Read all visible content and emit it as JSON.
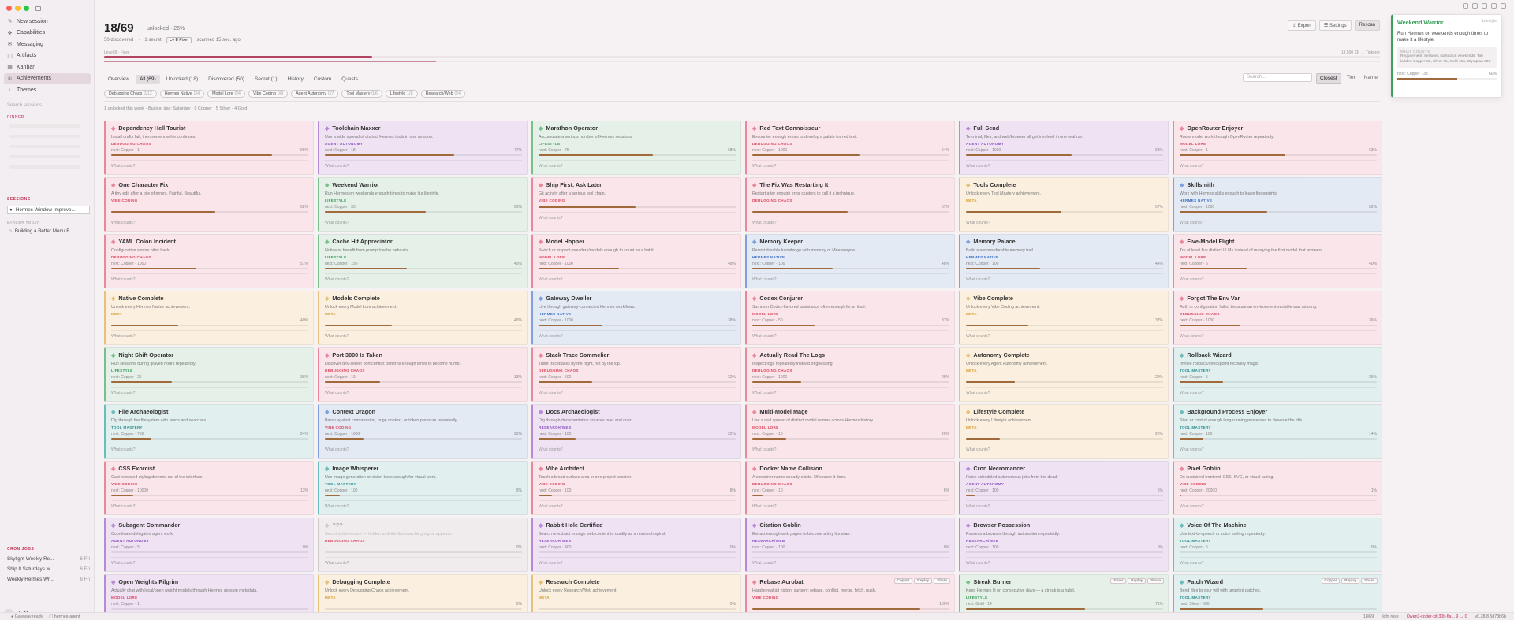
{
  "sidebar": {
    "nav": [
      {
        "icon": "✎",
        "icon_name": "new-session-icon",
        "label": "New session"
      },
      {
        "icon": "❖",
        "icon_name": "capabilities-icon",
        "label": "Capabilities"
      },
      {
        "icon": "✉",
        "icon_name": "messaging-icon",
        "label": "Messaging"
      },
      {
        "icon": "▢",
        "icon_name": "artifacts-icon",
        "label": "Artifacts"
      },
      {
        "icon": "▦",
        "icon_name": "kanban-icon",
        "label": "Kanban"
      },
      {
        "icon": "♔",
        "icon_name": "achievements-icon",
        "label": "Achievements"
      },
      {
        "icon": "◐",
        "icon_name": "themes-icon",
        "label": "Themes"
      }
    ],
    "search_placeholder": "Search sessions",
    "pinned_label": "PINNED",
    "sessions_label": "SESSIONS",
    "sessions": [
      {
        "label": "Hermes Window Improve..."
      }
    ],
    "earlier_label": "EARLIER TODAY",
    "earlier": [
      {
        "label": "Building a Better Menu B..."
      }
    ],
    "cron_label": "CRON JOBS",
    "cron": [
      {
        "label": "Skylight Weekly Re...",
        "time": "6 Fri"
      },
      {
        "label": "Ship It Saturdays w...",
        "time": "6 Fri"
      },
      {
        "label": "Weekly Hermes Wr...",
        "time": "6 Fri"
      }
    ]
  },
  "header": {
    "title": "18/69",
    "subtitle": "unlocked · 26%",
    "stats": {
      "discovered": "50 discovered",
      "secret": "1 secret",
      "level": "Lv 8",
      "tier": "Fixer",
      "scanned": "scanned 15 sec. ago"
    },
    "buttons": {
      "export": "Export",
      "settings": "Settings",
      "rescan": "Rescan"
    },
    "level_text": "Level 8 · Fixer",
    "xp_text": "18,500 XP → Tinkerer",
    "level_progress": 0.21,
    "xp_progress": 0.26
  },
  "tabs": [
    {
      "label": "Overview",
      "active": false
    },
    {
      "label": "All (69)",
      "active": true
    },
    {
      "label": "Unlocked (18)",
      "active": false
    },
    {
      "label": "Discovered (50)",
      "active": false
    },
    {
      "label": "Secret (1)",
      "active": false
    },
    {
      "label": "History",
      "active": false
    },
    {
      "label": "Custom",
      "active": false
    },
    {
      "label": "Quests",
      "active": false
    }
  ],
  "search": {
    "placeholder": "Search..."
  },
  "sorts": [
    {
      "label": "Closest",
      "active": true
    },
    {
      "label": "Tier",
      "active": false
    },
    {
      "label": "Name",
      "active": false
    }
  ],
  "filters": [
    {
      "label": "Debugging Chaos",
      "count": "0/12"
    },
    {
      "label": "Hermes Native",
      "count": "0/4"
    },
    {
      "label": "Model Lore",
      "count": "0/4"
    },
    {
      "label": "Vibe Coding",
      "count": "0/8"
    },
    {
      "label": "Agent Autonomy",
      "count": "0/7"
    },
    {
      "label": "Tool Mastery",
      "count": "0/6"
    },
    {
      "label": "Lifestyle",
      "count": "1/8"
    },
    {
      "label": "Research/Web",
      "count": "0/4"
    }
  ],
  "week_summary": "1 unlocked this week · Busiest day: Saturday · 9 Copper · 5 Silver · 4 Gold",
  "colors": {
    "pink": "#fae5ea",
    "purple": "#efe3f3",
    "green": "#e5f1e8",
    "blue": "#e4eaf4",
    "yellow": "#fbf0df",
    "orange": "#fae7dd",
    "teal": "#e2efef",
    "gray": "#f0ecee"
  },
  "cards": [
    {
      "title": "Dependency Hell Tourist",
      "icon": "◆",
      "desc": "Install crafts fail, then somehow life continues.",
      "cat": "DEBUGGING CHAOS",
      "next": "next: Copper · 1",
      "pct": "96%",
      "progress": 0.96,
      "color": "pink"
    },
    {
      "title": "Toolchain Maxxer",
      "icon": "◆",
      "desc": "Use a wide spread of distinct Hermes tools in one session.",
      "cat": "AGENT AUTONOMY",
      "next": "next: Copper · 18",
      "pct": "77%",
      "progress": 0.77,
      "color": "purple"
    },
    {
      "title": "Marathon Operator",
      "icon": "◆",
      "desc": "Accumulate a serious number of Hermes sessions.",
      "cat": "LIFESTYLE",
      "next": "next: Copper · 75",
      "pct": "68%",
      "progress": 0.68,
      "color": "green"
    },
    {
      "title": "Red Text Connoisseur",
      "icon": "◆",
      "desc": "Encounter enough errors to develop a palate for red text.",
      "cat": "DEBUGGING CHAOS",
      "next": "next: Copper · 1000",
      "pct": "64%",
      "progress": 0.64,
      "color": "pink"
    },
    {
      "title": "Full Send",
      "icon": "◆",
      "desc": "Terminal, files, and web/browser all get involved in one real run.",
      "cat": "AGENT AUTONOMY",
      "next": "next: Copper · 1000",
      "pct": "63%",
      "progress": 0.63,
      "color": "purple"
    },
    {
      "title": "OpenRouter Enjoyer",
      "icon": "◆",
      "desc": "Route model work through OpenRouter repeatedly.",
      "cat": "MODEL LORE",
      "next": "next: Copper · 1",
      "pct": "63%",
      "progress": 0.63,
      "color": "pink"
    },
    {
      "title": "One Character Fix",
      "icon": "◆",
      "desc": "A tiny edit after a pile of errors. Painful. Beautiful.",
      "cat": "VIBE CODING",
      "next": "",
      "pct": "62%",
      "progress": 0.62,
      "color": "pink"
    },
    {
      "title": "Weekend Warrior",
      "icon": "◆",
      "desc": "Run Hermes on weekends enough times to make it a lifestyle.",
      "cat": "LIFESTYLE",
      "next": "next: Copper · 33",
      "pct": "60%",
      "progress": 0.6,
      "color": "green"
    },
    {
      "title": "Ship First, Ask Later",
      "icon": "◆",
      "desc": "Git activity after a serious tool chain.",
      "cat": "VIBE CODING",
      "next": "",
      "pct": "",
      "progress": 0.58,
      "color": "pink"
    },
    {
      "title": "The Fix Was Restarting It",
      "icon": "◆",
      "desc": "Restart after enough error clusters to call it a technique.",
      "cat": "DEBUGGING CHAOS",
      "next": "",
      "pct": "57%",
      "progress": 0.57,
      "color": "pink"
    },
    {
      "title": "Tools Complete",
      "icon": "◆",
      "desc": "Unlock every Tool Mastery achievement.",
      "cat": "META",
      "next": "",
      "pct": "57%",
      "progress": 0.57,
      "color": "yellow"
    },
    {
      "title": "Skillsmith",
      "icon": "◆",
      "desc": "Work with Hermes skills enough to leave fingerprints.",
      "cat": "HERMES NATIVE",
      "next": "next: Copper · 1000",
      "pct": "52%",
      "progress": 0.52,
      "color": "blue"
    },
    {
      "title": "YAML Colon Incident",
      "icon": "◆",
      "desc": "Configuration syntax bites back.",
      "cat": "DEBUGGING CHAOS",
      "next": "next: Copper · 1000",
      "pct": "51%",
      "progress": 0.51,
      "color": "pink"
    },
    {
      "title": "Cache Hit Appreciator",
      "icon": "◆",
      "desc": "Notice or benefit from prompt/cache behavior.",
      "cat": "LIFESTYLE",
      "next": "next: Copper · 150",
      "pct": "49%",
      "progress": 0.49,
      "color": "green"
    },
    {
      "title": "Model Hopper",
      "icon": "◆",
      "desc": "Switch or inspect providers/models enough to count as a habit.",
      "cat": "MODEL LORE",
      "next": "next: Copper · 1000",
      "pct": "48%",
      "progress": 0.48,
      "color": "pink"
    },
    {
      "title": "Memory Keeper",
      "icon": "◆",
      "desc": "Persist durable knowledge with memory or Mnemosyne.",
      "cat": "HERMES NATIVE",
      "next": "next: Copper · 100",
      "pct": "48%",
      "progress": 0.48,
      "color": "blue"
    },
    {
      "title": "Memory Palace",
      "icon": "◆",
      "desc": "Build a serious durable-memory trail.",
      "cat": "HERMES NATIVE",
      "next": "next: Copper · 100",
      "pct": "44%",
      "progress": 0.44,
      "color": "blue"
    },
    {
      "title": "Five-Model Flight",
      "icon": "◆",
      "desc": "Try at least five distinct LLMs instead of marrying the first model that answers.",
      "cat": "MODEL LORE",
      "next": "next: Copper · 5",
      "pct": "40%",
      "progress": 0.4,
      "color": "pink"
    },
    {
      "title": "Native Complete",
      "icon": "◆",
      "desc": "Unlock every Hermes Native achievement.",
      "cat": "META",
      "next": "",
      "pct": "40%",
      "progress": 0.4,
      "color": "yellow"
    },
    {
      "title": "Models Complete",
      "icon": "◆",
      "desc": "Unlock every Model Lore achievement.",
      "cat": "META",
      "next": "",
      "pct": "40%",
      "progress": 0.4,
      "color": "yellow"
    },
    {
      "title": "Gateway Dweller",
      "icon": "◆",
      "desc": "Live through gateway-connected Hermes workflows.",
      "cat": "HERMES NATIVE",
      "next": "next: Copper · 1000",
      "pct": "38%",
      "progress": 0.38,
      "color": "blue"
    },
    {
      "title": "Codex Conjurer",
      "icon": "◆",
      "desc": "Summon Codex-flavored assistance often enough for a ritual.",
      "cat": "MODEL LORE",
      "next": "next: Copper · 50",
      "pct": "37%",
      "progress": 0.37,
      "color": "pink"
    },
    {
      "title": "Vibe Complete",
      "icon": "◆",
      "desc": "Unlock every Vibe Coding achievement.",
      "cat": "META",
      "next": "",
      "pct": "37%",
      "progress": 0.37,
      "color": "yellow"
    },
    {
      "title": "Forgot The Env Var",
      "icon": "◆",
      "desc": "Auth or configuration failed because an environment variable was missing.",
      "cat": "DEBUGGING CHAOS",
      "next": "next: Copper · 1000",
      "pct": "36%",
      "progress": 0.36,
      "color": "pink"
    },
    {
      "title": "Night Shift Operator",
      "icon": "◆",
      "desc": "Run sessions during graveh hours repeatedly.",
      "cat": "LIFESTYLE",
      "next": "next: Copper · 25",
      "pct": "36%",
      "progress": 0.36,
      "color": "green"
    },
    {
      "title": "Port 3000 Is Taken",
      "icon": "◆",
      "desc": "Discover dev-server port conflict patterns enough times to become numb.",
      "cat": "DEBUGGING CHAOS",
      "next": "next: Copper · 10",
      "pct": "33%",
      "progress": 0.33,
      "color": "pink"
    },
    {
      "title": "Stack Trace Sommelier",
      "icon": "◆",
      "desc": "Taste tracebacks by the flight, not by the sip.",
      "cat": "DEBUGGING CHAOS",
      "next": "next: Copper · 500",
      "pct": "32%",
      "progress": 0.32,
      "color": "pink"
    },
    {
      "title": "Actually Read The Logs",
      "icon": "◆",
      "desc": "Inspect logs repeatedly instead of guessing.",
      "cat": "DEBUGGING CHAOS",
      "next": "next: Copper · 1000",
      "pct": "29%",
      "progress": 0.29,
      "color": "pink"
    },
    {
      "title": "Autonomy Complete",
      "icon": "◆",
      "desc": "Unlock every Agent Autonomy achievement.",
      "cat": "META",
      "next": "",
      "pct": "29%",
      "progress": 0.29,
      "color": "yellow"
    },
    {
      "title": "Rollback Wizard",
      "icon": "◆",
      "desc": "Invoke rollback/checkpoint recovery magic.",
      "cat": "TOOL MASTERY",
      "next": "next: Copper · 5",
      "pct": "26%",
      "progress": 0.26,
      "color": "teal"
    },
    {
      "title": "File Archaeologist",
      "icon": "◆",
      "desc": "Dig through the filesystem with reads and searches.",
      "cat": "TOOL MASTERY",
      "next": "next: Copper · 750",
      "pct": "24%",
      "progress": 0.24,
      "color": "teal"
    },
    {
      "title": "Context Dragon",
      "icon": "◆",
      "desc": "Brush against compression, huge context, or token pressure repeatedly.",
      "cat": "VIBE CODING",
      "next": "next: Copper · 1000",
      "pct": "23%",
      "progress": 0.23,
      "color": "blue"
    },
    {
      "title": "Docs Archaeologist",
      "icon": "◆",
      "desc": "Dig through documentation sources over and over.",
      "cat": "RESEARCH/WEB",
      "next": "next: Copper · 100",
      "pct": "22%",
      "progress": 0.22,
      "color": "purple"
    },
    {
      "title": "Multi-Model Mage",
      "icon": "◆",
      "desc": "Use a real spread of distinct model names across Hermes history.",
      "cat": "MODEL LORE",
      "next": "next: Copper · 10",
      "pct": "20%",
      "progress": 0.2,
      "color": "pink"
    },
    {
      "title": "Lifestyle Complete",
      "icon": "◆",
      "desc": "Unlock every Lifestyle achievement.",
      "cat": "META",
      "next": "",
      "pct": "20%",
      "progress": 0.2,
      "color": "yellow"
    },
    {
      "title": "Background Process Enjoyer",
      "icon": "◆",
      "desc": "Start or control enough long-running processes to deserve the title.",
      "cat": "TOOL MASTERY",
      "next": "next: Copper · 100",
      "pct": "14%",
      "progress": 0.14,
      "color": "teal"
    },
    {
      "title": "CSS Exorcist",
      "icon": "◆",
      "desc": "Cast repeated styling demons out of the interface.",
      "cat": "VIBE CODING",
      "next": "next: Copper · 10000",
      "pct": "13%",
      "progress": 0.13,
      "color": "pink"
    },
    {
      "title": "Image Whisperer",
      "icon": "◆",
      "desc": "Use image generation or vision tools enough for visual work.",
      "cat": "TOOL MASTERY",
      "next": "next: Copper · 100",
      "pct": "9%",
      "progress": 0.09,
      "color": "teal"
    },
    {
      "title": "Vibe Architect",
      "icon": "◆",
      "desc": "Touch a broad surface area in one project session.",
      "cat": "VIBE CODING",
      "next": "next: Copper · 100",
      "pct": "8%",
      "progress": 0.08,
      "color": "pink"
    },
    {
      "title": "Docker Name Collision",
      "icon": "◆",
      "desc": "A container name already exists. Of course it does.",
      "cat": "DEBUGGING CHAOS",
      "next": "next: Copper · 10",
      "pct": "6%",
      "progress": 0.06,
      "color": "pink"
    },
    {
      "title": "Cron Necromancer",
      "icon": "◆",
      "desc": "Raise scheduled autonomous jobs from the dead.",
      "cat": "AGENT AUTONOMY",
      "next": "next: Copper · 100",
      "pct": "5%",
      "progress": 0.05,
      "color": "purple"
    },
    {
      "title": "Pixel Goblin",
      "icon": "◆",
      "desc": "Do sustained frontend, CSS, SVG, or visual tuning.",
      "cat": "VIBE CODING",
      "next": "next: Copper · 20000",
      "pct": "1%",
      "progress": 0.01,
      "color": "pink"
    },
    {
      "title": "Subagent Commander",
      "icon": "◆",
      "desc": "Coordinate delegated agent work.",
      "cat": "AGENT AUTONOMY",
      "next": "next: Copper · 5",
      "pct": "0%",
      "progress": 0,
      "color": "purple"
    },
    {
      "title": "???",
      "icon": "◆",
      "desc": "Secret achievement — hidden until the first matching signal appears.",
      "cat": "DEBUGGING CHAOS",
      "next": "",
      "pct": "0%",
      "progress": 0,
      "color": "gray",
      "hidden": true
    },
    {
      "title": "Rabbit Hole Certified",
      "icon": "◆",
      "desc": "Search or extract enough web content to qualify as a research spiral.",
      "cat": "RESEARCH/WEB",
      "next": "next: Copper · 400",
      "pct": "0%",
      "progress": 0,
      "color": "purple"
    },
    {
      "title": "Citation Goblin",
      "icon": "◆",
      "desc": "Extract enough web pages to become a tiny librarian.",
      "cat": "RESEARCH/WEB",
      "next": "next: Copper · 100",
      "pct": "0%",
      "progress": 0,
      "color": "purple"
    },
    {
      "title": "Browser Possession",
      "icon": "◆",
      "desc": "Possess a browser through automation repeatedly.",
      "cat": "RESEARCH/WEB",
      "next": "next: Copper · 100",
      "pct": "0%",
      "progress": 0,
      "color": "purple"
    },
    {
      "title": "Voice Of The Machine",
      "icon": "◆",
      "desc": "Use text-to-speech or voice tooling repeatedly.",
      "cat": "TOOL MASTERY",
      "next": "next: Copper · 5",
      "pct": "0%",
      "progress": 0,
      "color": "teal"
    },
    {
      "title": "Open Weights Pilgrim",
      "icon": "◆",
      "desc": "Actually chat with local/open weight models through Hermes session metadata.",
      "cat": "MODEL LORE",
      "next": "next: Copper · 1",
      "pct": "",
      "progress": 0,
      "color": "purple"
    },
    {
      "title": "Debugging Complete",
      "icon": "◆",
      "desc": "Unlock every Debugging Chaos achievement.",
      "cat": "META",
      "next": "",
      "pct": "0%",
      "progress": 0,
      "color": "yellow"
    },
    {
      "title": "Research Complete",
      "icon": "◆",
      "desc": "Unlock every Research/Web achievement.",
      "cat": "META",
      "next": "",
      "pct": "0%",
      "progress": 0,
      "color": "yellow"
    },
    {
      "title": "Rebase Acrobat",
      "icon": "◆",
      "desc": "Handle real git history surgery: rebase, conflict, merge, fetch, push.",
      "cat": "VIBE CODING",
      "next": "",
      "pct": "100%",
      "progress": 1,
      "color": "pink",
      "badge": "Copper",
      "actions": [
        "Replay",
        "Share"
      ]
    },
    {
      "title": "Streak Burner",
      "icon": "◆",
      "desc": "Keep Hermes lit on consecutive days — a streak is a habit.",
      "cat": "LIFESTYLE",
      "next": "next: Gold · 14",
      "pct": "71%",
      "progress": 0.71,
      "color": "green",
      "badge": "Silver",
      "actions": [
        "Replay",
        "Share"
      ]
    },
    {
      "title": "Patch Wizard",
      "icon": "◆",
      "desc": "Bend files to your will with targeted patches.",
      "cat": "TOOL MASTERY",
      "next": "next: Silver · 500",
      "pct": "",
      "progress": 0.5,
      "color": "teal",
      "badge": "Copper",
      "actions": [
        "Replay",
        "Share"
      ]
    }
  ],
  "what_counts": "What counts?",
  "toast": {
    "title": "Weekend Warrior",
    "label": "Lifestyle",
    "desc": "Run Hermes on weekends enough times to make it a lifestyle.",
    "box_head": "WHAT COUNTS",
    "box_text": "Requirement: sessions started on weekends. Tier ladder: Copper 33, Silver 75, Gold 150, Olympian 300.",
    "next": "next: Copper · 33",
    "pct": "60%",
    "progress": 0.6
  },
  "statusbar": {
    "gateway": "Gateway ready",
    "agent": "hermes-agent",
    "right": [
      "18/69",
      "light rose",
      "Qwen3-coder-xit-30b-fla... 9 → 0",
      "v0.28.8 5d73b6b"
    ]
  }
}
